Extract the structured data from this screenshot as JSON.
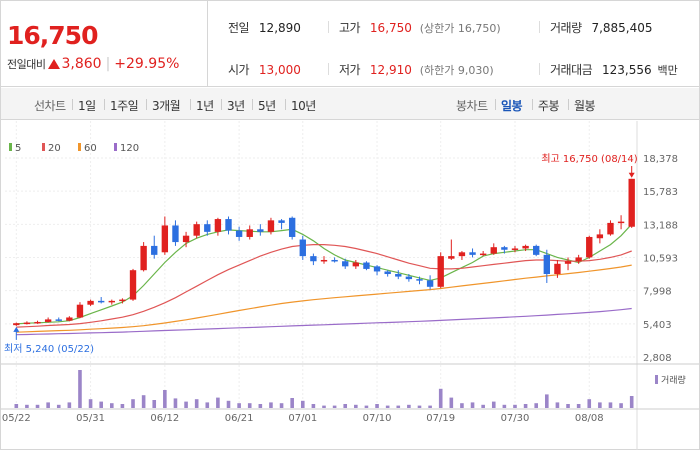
{
  "header": {
    "price": "16,750",
    "change_label": "전일대비",
    "change": "3,860",
    "change_pct": "+29.95%",
    "prev_close_label": "전일",
    "prev_close": "12,890",
    "open_label": "시가",
    "open": "13,000",
    "high_label": "고가",
    "high": "16,750",
    "upper_limit": "(상한가 16,750)",
    "low_label": "저가",
    "low": "12,910",
    "lower_limit": "(하한가 9,030)",
    "volume_label": "거래량",
    "volume": "7,885,405",
    "amount_label": "거래대금",
    "amount": "123,556",
    "amount_unit": "백만"
  },
  "toolbar": {
    "line_chart_label": "선차트",
    "periods": [
      "1일",
      "1주일",
      "3개월",
      "1년",
      "3년",
      "5년",
      "10년"
    ],
    "candle_chart_label": "봉차트",
    "candle_periods": [
      "일봉",
      "주봉",
      "월봉"
    ],
    "active_candle_period": "일봉"
  },
  "colors": {
    "up": "#e0211f",
    "down": "#2c6fe0",
    "ma5": "#6ab54a",
    "ma20": "#e05656",
    "ma60": "#f0952b",
    "ma120": "#9a6cc9",
    "volume": "#9b85c8"
  },
  "chart_data": {
    "type": "candlestick",
    "legend": [
      {
        "name": "5",
        "color": "#6ab54a"
      },
      {
        "name": "20",
        "color": "#e05656"
      },
      {
        "name": "60",
        "color": "#f0952b"
      },
      {
        "name": "120",
        "color": "#9a6cc9"
      }
    ],
    "y_ticks": [
      "18,378",
      "15,783",
      "13,188",
      "10,593",
      "7,998",
      "5,403",
      "2,808"
    ],
    "ylim": [
      2808,
      18378
    ],
    "x_labels": [
      "05/22",
      "05/31",
      "06/12",
      "06/21",
      "07/01",
      "07/10",
      "07/19",
      "07/30",
      "08/08"
    ],
    "x_label_index": [
      0,
      7,
      14,
      21,
      27,
      34,
      40,
      47,
      54
    ],
    "high_annotation": "최고 16,750 (08/14)",
    "low_annotation": "최저 5,240 (05/22)",
    "volume_legend": "거래량",
    "candles": [
      [
        5300,
        5500,
        5240,
        5450
      ],
      [
        5450,
        5600,
        5350,
        5500
      ],
      [
        5500,
        5650,
        5400,
        5550
      ],
      [
        5550,
        5900,
        5500,
        5750
      ],
      [
        5750,
        5900,
        5600,
        5650
      ],
      [
        5650,
        6000,
        5600,
        5900
      ],
      [
        5900,
        7100,
        5850,
        6900
      ],
      [
        6900,
        7300,
        6800,
        7200
      ],
      [
        7200,
        7500,
        7000,
        7100
      ],
      [
        7100,
        7300,
        6900,
        7200
      ],
      [
        7200,
        7400,
        7000,
        7300
      ],
      [
        7300,
        9700,
        7200,
        9600
      ],
      [
        9600,
        11800,
        9500,
        11500
      ],
      [
        11500,
        12300,
        10500,
        10800
      ],
      [
        11000,
        13800,
        10800,
        13100
      ],
      [
        13100,
        13500,
        11500,
        11800
      ],
      [
        11800,
        12600,
        11400,
        12300
      ],
      [
        12300,
        13400,
        12100,
        13200
      ],
      [
        13200,
        13500,
        12300,
        12600
      ],
      [
        12600,
        13700,
        12300,
        13600
      ],
      [
        13600,
        13800,
        12400,
        12700
      ],
      [
        12700,
        13000,
        11900,
        12200
      ],
      [
        12200,
        13100,
        12000,
        12800
      ],
      [
        12800,
        13200,
        12300,
        12600
      ],
      [
        12600,
        13700,
        12400,
        13500
      ],
      [
        13500,
        13600,
        12800,
        13300
      ],
      [
        13700,
        13800,
        12000,
        12200
      ],
      [
        12000,
        12300,
        10400,
        10700
      ],
      [
        10700,
        10900,
        10000,
        10300
      ],
      [
        10300,
        10700,
        10100,
        10400
      ],
      [
        10400,
        10600,
        10200,
        10300
      ],
      [
        10300,
        10500,
        9700,
        9900
      ],
      [
        9900,
        10400,
        9700,
        10200
      ],
      [
        10200,
        10300,
        9600,
        9700
      ],
      [
        9900,
        10000,
        9200,
        9500
      ],
      [
        9500,
        9600,
        9100,
        9300
      ],
      [
        9300,
        9600,
        8900,
        9100
      ],
      [
        9100,
        9300,
        8700,
        8900
      ],
      [
        8900,
        9100,
        8500,
        8800
      ],
      [
        8800,
        9200,
        8100,
        8300
      ],
      [
        8300,
        11000,
        8200,
        10700
      ],
      [
        10500,
        12000,
        10400,
        10700
      ],
      [
        10700,
        11100,
        10400,
        11000
      ],
      [
        11000,
        11300,
        10600,
        10800
      ],
      [
        10800,
        11100,
        10700,
        10900
      ],
      [
        10900,
        11700,
        10800,
        11400
      ],
      [
        11400,
        11500,
        10900,
        11200
      ],
      [
        11200,
        11500,
        11000,
        11300
      ],
      [
        11300,
        11600,
        11100,
        11500
      ],
      [
        11500,
        11600,
        10700,
        10800
      ],
      [
        10800,
        11200,
        8600,
        9300
      ],
      [
        9300,
        10400,
        9000,
        10100
      ],
      [
        10100,
        10600,
        9600,
        10300
      ],
      [
        10300,
        10800,
        10100,
        10600
      ],
      [
        10600,
        12300,
        10500,
        12200
      ],
      [
        12100,
        12800,
        11700,
        12400
      ],
      [
        12400,
        13500,
        12300,
        13300
      ],
      [
        13300,
        13900,
        12800,
        13400
      ],
      [
        13000,
        16750,
        12910,
        16750
      ]
    ],
    "ma": {
      "ma5": [
        5400,
        5450,
        5480,
        5520,
        5560,
        5650,
        5900,
        6200,
        6500,
        6800,
        7100,
        7600,
        8400,
        9300,
        10200,
        11000,
        11700,
        12100,
        12400,
        12600,
        12750,
        12700,
        12650,
        12600,
        12600,
        12700,
        12800,
        12400,
        11900,
        11300,
        10800,
        10400,
        10200,
        10000,
        9800,
        9600,
        9400,
        9200,
        9000,
        8800,
        9000,
        9400,
        9800,
        10200,
        10700,
        10900,
        11000,
        11100,
        11200,
        11200,
        10900,
        10600,
        10400,
        10200,
        10600,
        11100,
        11600,
        12300,
        13200
      ],
      "ma20": [
        5150,
        5180,
        5220,
        5270,
        5310,
        5350,
        5420,
        5520,
        5640,
        5780,
        5920,
        6120,
        6380,
        6700,
        7050,
        7450,
        7900,
        8350,
        8800,
        9250,
        9650,
        10000,
        10350,
        10700,
        11000,
        11250,
        11450,
        11550,
        11600,
        11600,
        11550,
        11450,
        11300,
        11100,
        10900,
        10650,
        10400,
        10150,
        9950,
        9750,
        9700,
        9700,
        9750,
        9850,
        9950,
        10050,
        10150,
        10250,
        10350,
        10400,
        10400,
        10350,
        10300,
        10300,
        10350,
        10450,
        10600,
        10800,
        11100
      ],
      "ma60": [
        4750,
        4780,
        4810,
        4840,
        4870,
        4900,
        4940,
        4980,
        5020,
        5070,
        5120,
        5180,
        5260,
        5360,
        5470,
        5590,
        5720,
        5860,
        6000,
        6150,
        6300,
        6450,
        6590,
        6730,
        6860,
        6990,
        7100,
        7200,
        7290,
        7370,
        7450,
        7520,
        7590,
        7660,
        7730,
        7800,
        7870,
        7940,
        8010,
        8080,
        8170,
        8270,
        8370,
        8470,
        8570,
        8670,
        8770,
        8870,
        8970,
        9060,
        9150,
        9240,
        9330,
        9420,
        9520,
        9620,
        9730,
        9850,
        10000
      ],
      "ma120": [
        4550,
        4570,
        4590,
        4610,
        4630,
        4650,
        4670,
        4690,
        4710,
        4730,
        4760,
        4790,
        4820,
        4850,
        4880,
        4910,
        4940,
        4970,
        5000,
        5030,
        5060,
        5090,
        5120,
        5150,
        5180,
        5210,
        5240,
        5270,
        5300,
        5330,
        5360,
        5390,
        5420,
        5450,
        5480,
        5510,
        5540,
        5570,
        5600,
        5630,
        5670,
        5710,
        5750,
        5790,
        5830,
        5870,
        5910,
        5950,
        5990,
        6040,
        6090,
        6140,
        6190,
        6240,
        6300,
        6360,
        6430,
        6510,
        6600
      ]
    },
    "volume": [
      10,
      8,
      8,
      14,
      8,
      14,
      95,
      22,
      16,
      12,
      10,
      22,
      32,
      20,
      45,
      24,
      16,
      22,
      14,
      26,
      18,
      12,
      12,
      10,
      14,
      12,
      25,
      18,
      10,
      6,
      6,
      10,
      8,
      6,
      10,
      6,
      6,
      8,
      6,
      6,
      48,
      26,
      12,
      14,
      8,
      16,
      8,
      8,
      10,
      12,
      34,
      14,
      10,
      10,
      22,
      14,
      14,
      12,
      30
    ]
  }
}
